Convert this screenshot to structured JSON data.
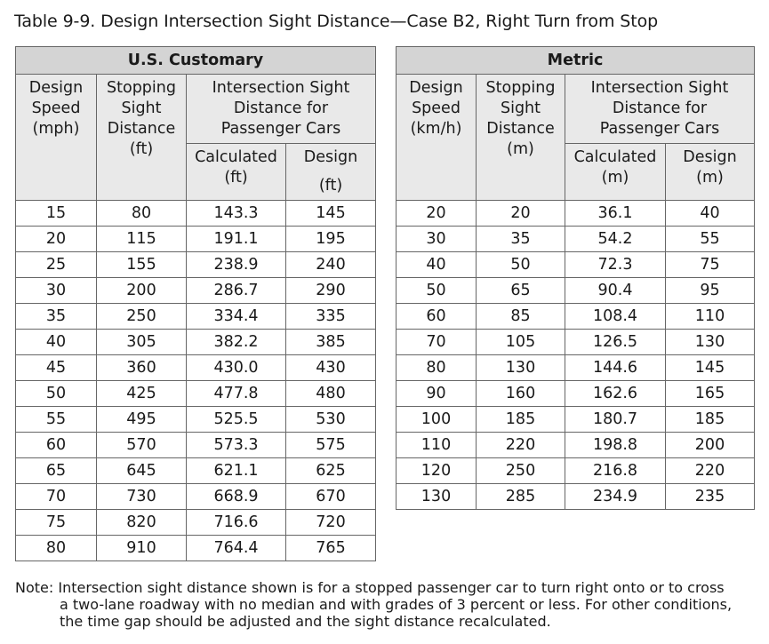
{
  "title": "Table 9-9. Design Intersection Sight Distance—Case B2, Right Turn from Stop",
  "us": {
    "group_label": "U.S. Customary",
    "headers": {
      "design_speed": [
        "Design",
        "Speed",
        "(mph)"
      ],
      "stopping_sight": [
        "Stopping",
        "Sight",
        "Distance",
        "(ft)"
      ],
      "isd": [
        "Intersection Sight",
        "Distance for",
        "Passenger Cars"
      ],
      "calculated": [
        "Calculated",
        "(ft)"
      ],
      "design": [
        "Design",
        "(ft)"
      ]
    },
    "rows": [
      [
        "15",
        "80",
        "143.3",
        "145"
      ],
      [
        "20",
        "115",
        "191.1",
        "195"
      ],
      [
        "25",
        "155",
        "238.9",
        "240"
      ],
      [
        "30",
        "200",
        "286.7",
        "290"
      ],
      [
        "35",
        "250",
        "334.4",
        "335"
      ],
      [
        "40",
        "305",
        "382.2",
        "385"
      ],
      [
        "45",
        "360",
        "430.0",
        "430"
      ],
      [
        "50",
        "425",
        "477.8",
        "480"
      ],
      [
        "55",
        "495",
        "525.5",
        "530"
      ],
      [
        "60",
        "570",
        "573.3",
        "575"
      ],
      [
        "65",
        "645",
        "621.1",
        "625"
      ],
      [
        "70",
        "730",
        "668.9",
        "670"
      ],
      [
        "75",
        "820",
        "716.6",
        "720"
      ],
      [
        "80",
        "910",
        "764.4",
        "765"
      ]
    ]
  },
  "metric": {
    "group_label": "Metric",
    "headers": {
      "design_speed": [
        "Design",
        "Speed",
        "(km/h)"
      ],
      "stopping_sight": [
        "Stopping",
        "Sight",
        "Distance",
        "(m)"
      ],
      "isd": [
        "Intersection Sight",
        "Distance for",
        "Passenger Cars"
      ],
      "calculated": [
        "Calculated",
        "(m)"
      ],
      "design": [
        "Design",
        "(m)"
      ]
    },
    "rows": [
      [
        "20",
        "20",
        "36.1",
        "40"
      ],
      [
        "30",
        "35",
        "54.2",
        "55"
      ],
      [
        "40",
        "50",
        "72.3",
        "75"
      ],
      [
        "50",
        "65",
        "90.4",
        "95"
      ],
      [
        "60",
        "85",
        "108.4",
        "110"
      ],
      [
        "70",
        "105",
        "126.5",
        "130"
      ],
      [
        "80",
        "130",
        "144.6",
        "145"
      ],
      [
        "90",
        "160",
        "162.6",
        "165"
      ],
      [
        "100",
        "185",
        "180.7",
        "185"
      ],
      [
        "110",
        "220",
        "198.8",
        "200"
      ],
      [
        "120",
        "250",
        "216.8",
        "220"
      ],
      [
        "130",
        "285",
        "234.9",
        "235"
      ]
    ]
  },
  "note": {
    "lines": [
      "Note: Intersection sight distance shown is for a stopped passenger car to turn right onto or to cross",
      "a two-lane roadway with no median and with grades of 3 percent or less. For other conditions,",
      "the time gap should be adjusted and the sight distance recalculated."
    ]
  }
}
